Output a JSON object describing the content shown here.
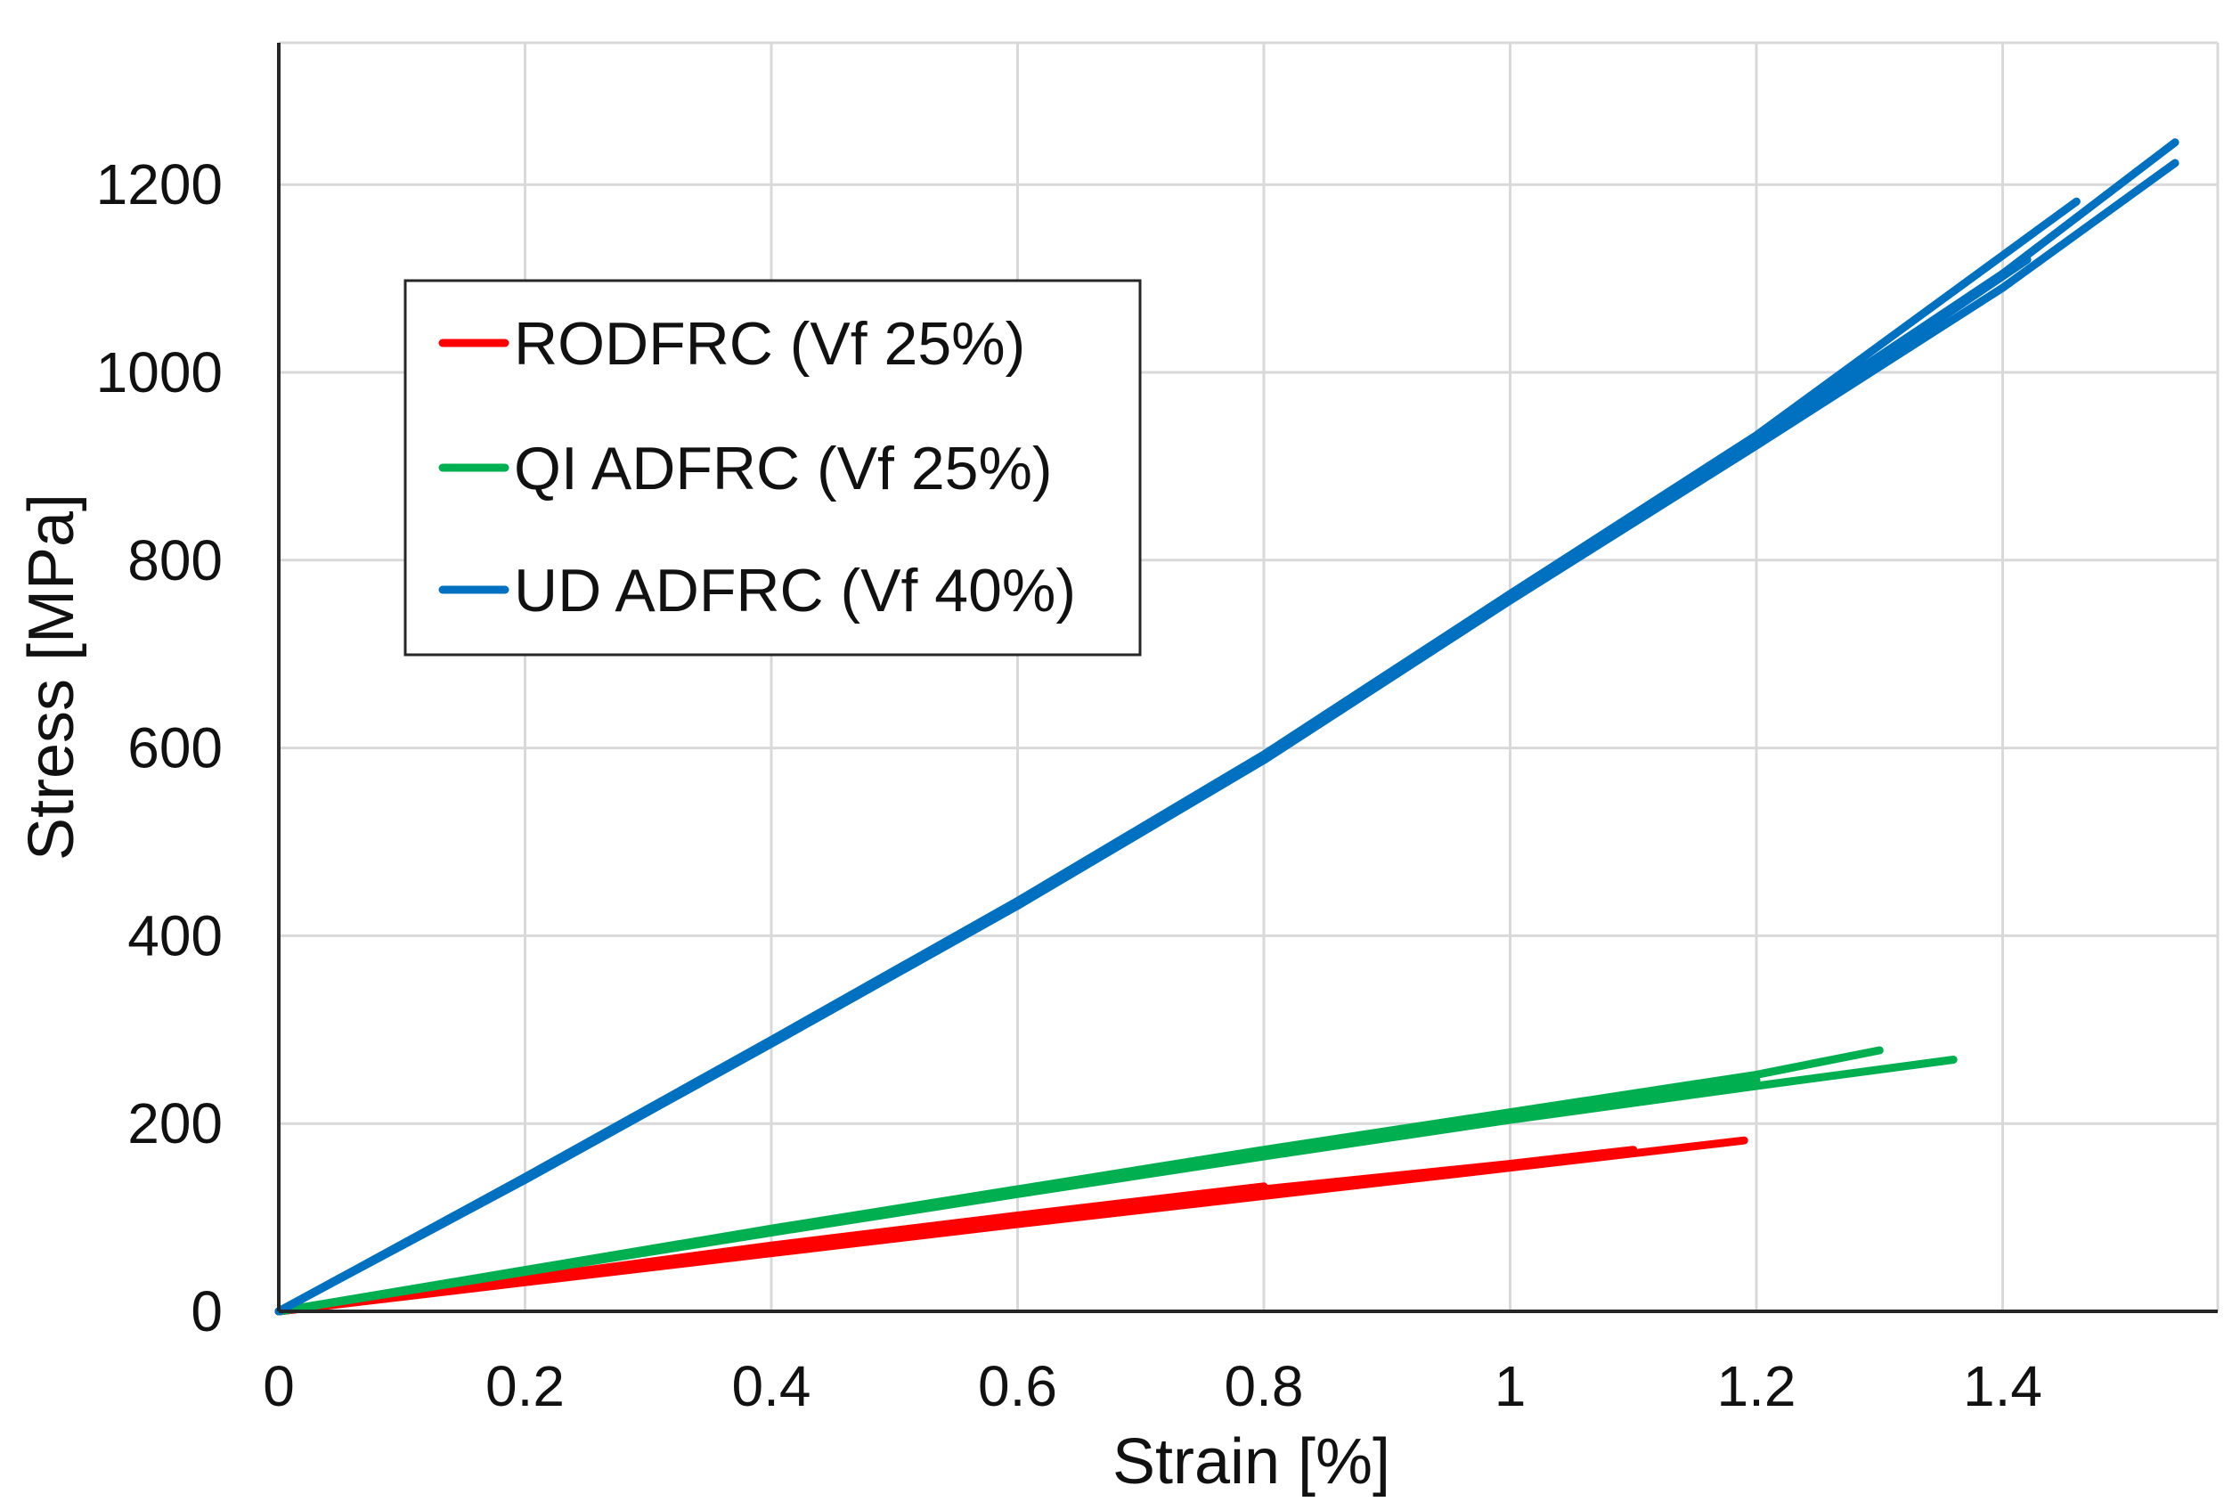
{
  "chart_data": {
    "type": "line",
    "title": "",
    "xlabel": "Strain [%]",
    "ylabel": "Stress [MPa]",
    "xlim": [
      0,
      1.56
    ],
    "ylim": [
      0,
      1340
    ],
    "xticks": [
      0,
      0.2,
      0.4,
      0.6,
      0.8,
      1,
      1.2,
      1.4
    ],
    "xtick_labels": [
      "0",
      "0.2",
      "0.4",
      "0.6",
      "0.8",
      "1",
      "1.2",
      "1.4"
    ],
    "yticks": [
      0,
      200,
      400,
      600,
      800,
      1000,
      1200
    ],
    "ytick_labels": [
      "0",
      "200",
      "400",
      "600",
      "800",
      "1000",
      "1200"
    ],
    "grid": true,
    "legend_position": "upper-left",
    "series": [
      {
        "name": "RODFRC (Vf 25%)",
        "color": "#ff0000",
        "curves": [
          {
            "x": [
              0,
              0.2,
              0.4,
              0.6,
              0.8,
              1.0,
              1.19
            ],
            "y": [
              0,
              31,
              62,
              93,
              123,
              153,
              182
            ]
          },
          {
            "x": [
              0,
              0.2,
              0.4,
              0.6,
              0.8,
              1.0,
              1.1
            ],
            "y": [
              0,
              33,
              66,
              98,
              130,
              157,
              172
            ]
          },
          {
            "x": [
              0,
              0.2,
              0.4,
              0.6,
              0.8
            ],
            "y": [
              0,
              35,
              70,
              102,
              133
            ]
          }
        ]
      },
      {
        "name": "QI ADFRC (Vf 25%)",
        "color": "#00b050",
        "curves": [
          {
            "x": [
              0,
              0.2,
              0.4,
              0.6,
              0.8,
              1.0,
              1.2,
              1.3
            ],
            "y": [
              0,
              44,
              88,
              130,
              172,
              212,
              252,
              278
            ]
          },
          {
            "x": [
              0,
              0.2,
              0.4,
              0.6,
              0.8,
              1.0,
              1.2,
              1.36
            ],
            "y": [
              0,
              42,
              84,
              125,
              165,
              204,
              240,
              268
            ]
          },
          {
            "x": [
              0,
              0.2,
              0.4,
              0.6,
              0.8,
              1.0,
              1.2
            ],
            "y": [
              0,
              43,
              86,
              128,
              168,
              208,
              246
            ]
          }
        ]
      },
      {
        "name": "UD ADFRC (Vf 40%)",
        "color": "#0070c0",
        "curves": [
          {
            "x": [
              0,
              0.2,
              0.4,
              0.6,
              0.8,
              1.0,
              1.2,
              1.4,
              1.54
            ],
            "y": [
              0,
              140,
              285,
              432,
              587,
              757,
              922,
              1090,
              1223
            ]
          },
          {
            "x": [
              0,
              0.2,
              0.4,
              0.6,
              0.8,
              1.0,
              1.2,
              1.4,
              1.54
            ],
            "y": [
              0,
              142,
              288,
              436,
              592,
              762,
              930,
              1105,
              1245
            ]
          },
          {
            "x": [
              0,
              0.2,
              0.4,
              0.6,
              0.8,
              1.0,
              1.2,
              1.42
            ],
            "y": [
              0,
              141,
              286,
              434,
              590,
              760,
              925,
              1120
            ]
          },
          {
            "x": [
              0,
              0.2,
              0.4,
              0.6,
              0.8,
              1.0,
              1.2,
              1.46
            ],
            "y": [
              0,
              143,
              289,
              437,
              593,
              764,
              933,
              1182
            ]
          }
        ]
      }
    ]
  }
}
